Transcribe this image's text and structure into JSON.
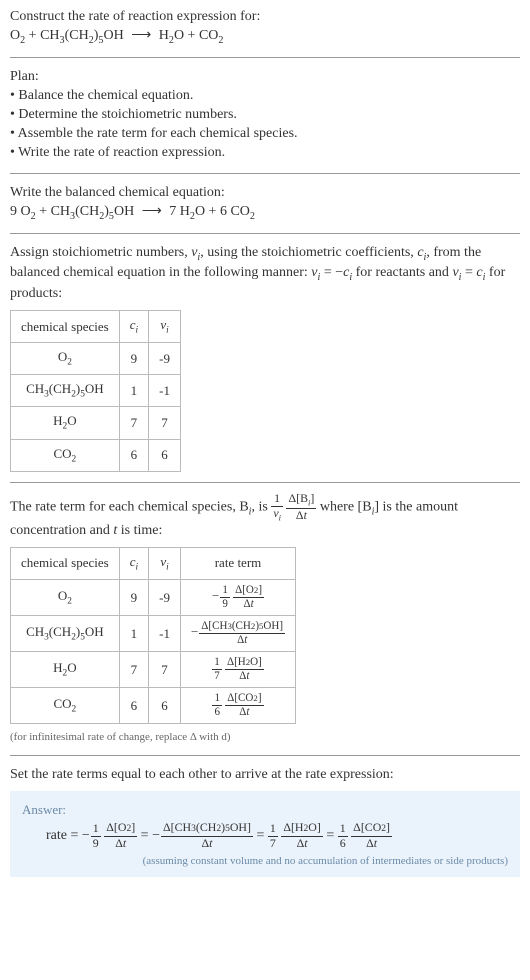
{
  "header": {
    "title": "Construct the rate of reaction expression for:",
    "unbalanced": {
      "lhs1": "O",
      "lhs1_sub": "2",
      "lhs2a": "CH",
      "lhs2a_sub": "3",
      "lhs2b": "(CH",
      "lhs2b_sub": "2",
      "lhs2c": ")",
      "lhs2c_sub": "5",
      "lhs2d": "OH",
      "rhs1": "H",
      "rhs1_sub": "2",
      "rhs1b": "O",
      "rhs2": "CO",
      "rhs2_sub": "2"
    }
  },
  "plan": {
    "label": "Plan:",
    "b1": "Balance the chemical equation.",
    "b2": "Determine the stoichiometric numbers.",
    "b3": "Assemble the rate term for each chemical species.",
    "b4": "Write the rate of reaction expression."
  },
  "balanced": {
    "intro": "Write the balanced chemical equation:",
    "c1": "9",
    "c2": "",
    "c3": "7",
    "c4": "6"
  },
  "stoich": {
    "intro1": "Assign stoichiometric numbers, ",
    "vi": "ν",
    "vi_sub": "i",
    "intro2": ", using the stoichiometric coefficients, ",
    "ci": "c",
    "ci_sub": "i",
    "intro3": ", from the balanced chemical equation in the following manner: ",
    "eq_react": " for reactants and ",
    "eq_prod": " for products:",
    "table": {
      "h1": "chemical species",
      "h2": "cᵢ",
      "h3": "νᵢ",
      "colors": {
        "border": "#bbb"
      },
      "rows": [
        {
          "sp": "O₂",
          "c": "9",
          "v": "-9"
        },
        {
          "sp": "CH₃(CH₂)₅OH",
          "c": "1",
          "v": "-1"
        },
        {
          "sp": "H₂O",
          "c": "7",
          "v": "7"
        },
        {
          "sp": "CO₂",
          "c": "6",
          "v": "6"
        }
      ]
    }
  },
  "rateterm": {
    "intro1": "The rate term for each chemical species, B",
    "intro2": ", is ",
    "intro3": " where [B",
    "intro4": "] is the amount concentration and ",
    "tvar": "t",
    "intro5": " is time:",
    "table": {
      "h1": "chemical species",
      "h2": "cᵢ",
      "h3": "νᵢ",
      "h4": "rate term"
    },
    "note": "(for infinitesimal rate of change, replace Δ with d)"
  },
  "final": {
    "intro": "Set the rate terms equal to each other to arrive at the rate expression:",
    "ans_label": "Answer:",
    "rate_label": "rate",
    "assump": "(assuming constant volume and no accumulation of intermediates or side products)"
  }
}
